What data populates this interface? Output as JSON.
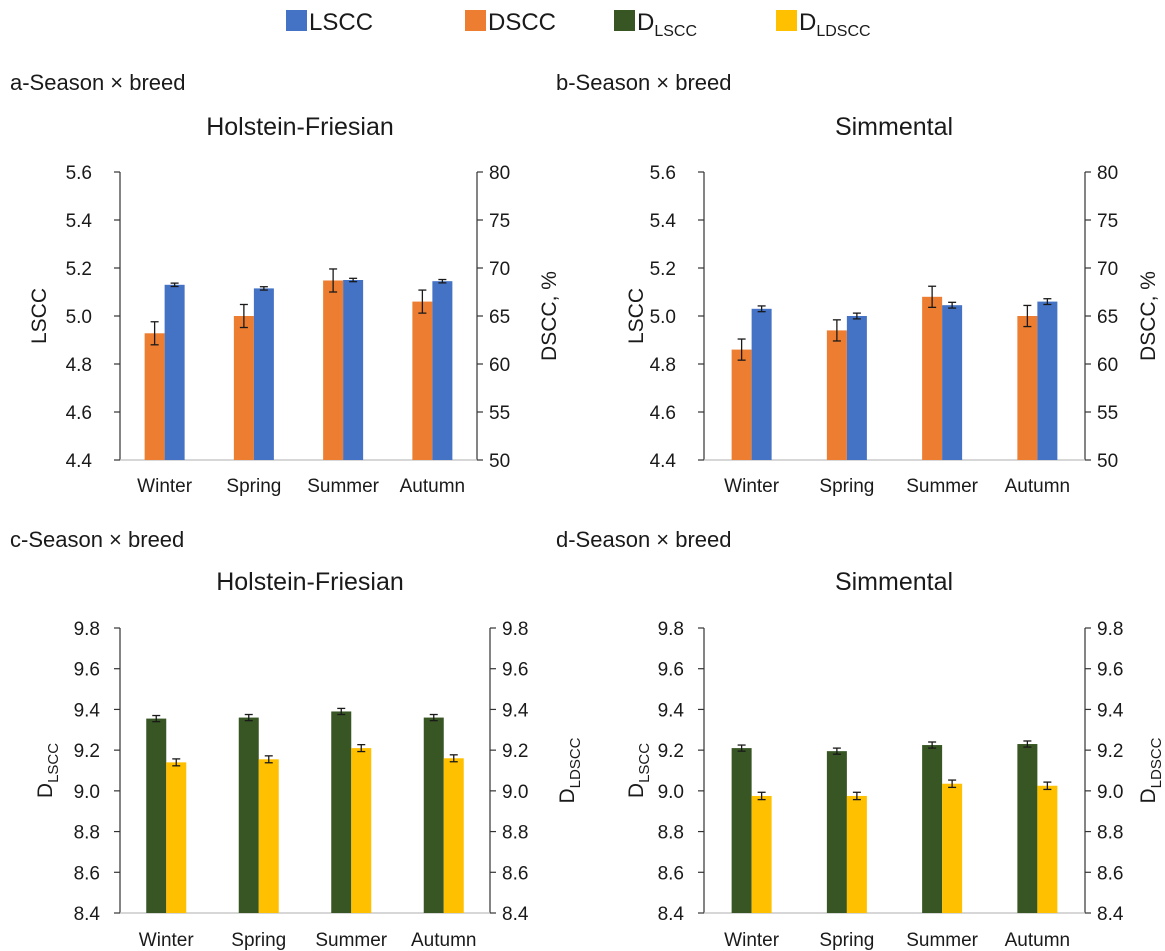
{
  "legend": [
    {
      "label": "LSCC",
      "sub": "",
      "color": "#4472C4"
    },
    {
      "label": "DSCC",
      "sub": "",
      "color": "#ED7D31"
    },
    {
      "label": "D",
      "sub": "LSCC",
      "color": "#375623"
    },
    {
      "label": "D",
      "sub": "LDSCC",
      "color": "#FFC000"
    }
  ],
  "chart_data": [
    {
      "id": "a",
      "type": "bar",
      "panel_label": "a-Season × breed",
      "title": "Holstein-Friesian",
      "categories": [
        "Winter",
        "Spring",
        "Summer",
        "Autumn"
      ],
      "left_axis": {
        "label": "LSCC",
        "sub": "",
        "lim": [
          4.4,
          5.6
        ],
        "step": 0.2,
        "decimals": 1
      },
      "right_axis": {
        "label": "DSCC, %",
        "sub": "",
        "lim": [
          50,
          80
        ],
        "step": 5,
        "decimals": 0
      },
      "series": [
        {
          "name": "DSCC",
          "axis": "right",
          "color": "#ED7D31",
          "values": [
            63.2,
            65.0,
            68.7,
            66.5
          ],
          "errors": [
            1.2,
            1.2,
            1.2,
            1.2
          ]
        },
        {
          "name": "LSCC",
          "axis": "left",
          "color": "#4472C4",
          "values": [
            5.13,
            5.115,
            5.15,
            5.145
          ],
          "errors": [
            0.007,
            0.007,
            0.007,
            0.007
          ]
        }
      ]
    },
    {
      "id": "b",
      "type": "bar",
      "panel_label": "b-Season × breed",
      "title": "Simmental",
      "categories": [
        "Winter",
        "Spring",
        "Summer",
        "Autumn"
      ],
      "left_axis": {
        "label": "LSCC",
        "sub": "",
        "lim": [
          4.4,
          5.6
        ],
        "step": 0.2,
        "decimals": 1
      },
      "right_axis": {
        "label": "DSCC, %",
        "sub": "",
        "lim": [
          50,
          80
        ],
        "step": 5,
        "decimals": 0
      },
      "series": [
        {
          "name": "DSCC",
          "axis": "right",
          "color": "#ED7D31",
          "values": [
            61.5,
            63.5,
            67.0,
            65.0
          ],
          "errors": [
            1.1,
            1.1,
            1.1,
            1.1
          ]
        },
        {
          "name": "LSCC",
          "axis": "left",
          "color": "#4472C4",
          "values": [
            5.03,
            5.0,
            5.045,
            5.06
          ],
          "errors": [
            0.012,
            0.012,
            0.012,
            0.012
          ]
        }
      ]
    },
    {
      "id": "c",
      "type": "bar",
      "panel_label": "c-Season × breed",
      "title": "Holstein-Friesian",
      "categories": [
        "Winter",
        "Spring",
        "Summer",
        "Autumn"
      ],
      "left_axis": {
        "label": "D",
        "sub": "LSCC",
        "lim": [
          8.4,
          9.8
        ],
        "step": 0.2,
        "decimals": 1
      },
      "right_axis": {
        "label": "D",
        "sub": "LDSCC",
        "lim": [
          8.4,
          9.8
        ],
        "step": 0.2,
        "decimals": 1
      },
      "series": [
        {
          "name": "DLSCC",
          "axis": "left",
          "color": "#375623",
          "values": [
            9.355,
            9.36,
            9.39,
            9.36
          ],
          "errors": [
            0.015,
            0.015,
            0.015,
            0.015
          ]
        },
        {
          "name": "DLDSCC",
          "axis": "right",
          "color": "#FFC000",
          "values": [
            9.14,
            9.155,
            9.21,
            9.16
          ],
          "errors": [
            0.017,
            0.017,
            0.017,
            0.017
          ]
        }
      ]
    },
    {
      "id": "d",
      "type": "bar",
      "panel_label": "d-Season × breed",
      "title": "Simmental",
      "categories": [
        "Winter",
        "Spring",
        "Summer",
        "Autumn"
      ],
      "left_axis": {
        "label": "D",
        "sub": "LSCC",
        "lim": [
          8.4,
          9.8
        ],
        "step": 0.2,
        "decimals": 1
      },
      "right_axis": {
        "label": "D",
        "sub": "LDSCC",
        "lim": [
          8.4,
          9.8
        ],
        "step": 0.2,
        "decimals": 1
      },
      "series": [
        {
          "name": "DLSCC",
          "axis": "left",
          "color": "#375623",
          "values": [
            9.21,
            9.195,
            9.225,
            9.23
          ],
          "errors": [
            0.015,
            0.015,
            0.015,
            0.015
          ]
        },
        {
          "name": "DLDSCC",
          "axis": "right",
          "color": "#FFC000",
          "values": [
            8.975,
            8.975,
            9.035,
            9.025
          ],
          "errors": [
            0.018,
            0.018,
            0.018,
            0.018
          ]
        }
      ]
    }
  ]
}
